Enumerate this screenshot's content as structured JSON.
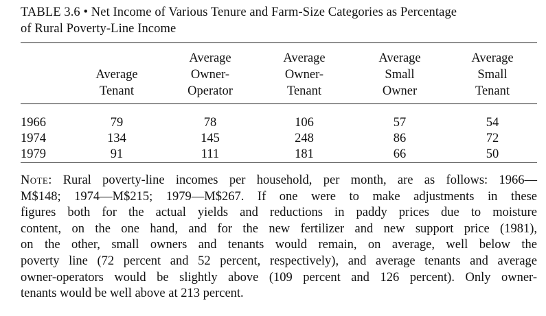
{
  "caption": {
    "line1": "TABLE 3.6 • Net Income of Various Tenure and Farm-Size Categories as Percentage",
    "line2": "of Rural Poverty-Line Income"
  },
  "table": {
    "columns": [
      {
        "line1": "",
        "line2": "Average",
        "line3": "Tenant"
      },
      {
        "line1": "Average",
        "line2": "Owner-",
        "line3": "Operator"
      },
      {
        "line1": "Average",
        "line2": "Owner-",
        "line3": "Tenant"
      },
      {
        "line1": "Average",
        "line2": "Small",
        "line3": "Owner"
      },
      {
        "line1": "Average",
        "line2": "Small",
        "line3": "Tenant"
      }
    ],
    "rows": [
      {
        "year": "1966",
        "values": [
          "79",
          "78",
          "106",
          "57",
          "54"
        ]
      },
      {
        "year": "1974",
        "values": [
          "134",
          "145",
          "248",
          "86",
          "72"
        ]
      },
      {
        "year": "1979",
        "values": [
          "91",
          "111",
          "181",
          "66",
          "50"
        ]
      }
    ]
  },
  "note": {
    "label": "Note",
    "lines": [
      ": Rural poverty-line incomes per household, per month, are as follows: 1966—",
      "M$148; 1974—M$215; 1979—M$267. If one were to make adjustments in these",
      "figures both for the actual yields and reductions in paddy prices due to moisture",
      "content, on the one hand, and for the new fertilizer and new support price (1981),",
      "on the other, small owners and tenants would remain, on average, well below the",
      "poverty line (72 percent and 52 percent, respectively), and average tenants and average",
      "owner-operators would be slightly above (109 percent and 126 percent). Only owner-",
      "tenants would be well above at 213 percent."
    ]
  }
}
